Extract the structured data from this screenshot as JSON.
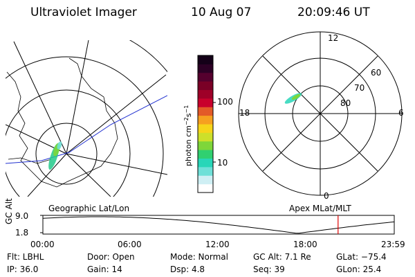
{
  "header": {
    "instrument": "Ultraviolet Imager",
    "date": "10 Aug 07",
    "time": "20:09:46 UT"
  },
  "colorbar": {
    "unit_label": "photon cm^-2 s^-1",
    "ticks": [
      "100",
      "10"
    ],
    "colors": [
      "#ffffff",
      "#cfeff4",
      "#6fe0d8",
      "#28d6b8",
      "#30d070",
      "#7ed63a",
      "#cde02a",
      "#f6d51a",
      "#f6a020",
      "#e35a28",
      "#c8002c",
      "#9e0028",
      "#7a0026",
      "#55002e",
      "#2c0025",
      "#140018"
    ]
  },
  "geo_panel": {
    "label": "Geographic Lat/Lon"
  },
  "polar_panel": {
    "label": "Apex MLat/MLT",
    "mlt_labels": {
      "top": "12",
      "left": "18",
      "right": "6",
      "bottom": "0"
    },
    "lat_labels": [
      "60",
      "70",
      "80"
    ]
  },
  "timeline": {
    "ylabel": "GC Alt",
    "y_ticks": [
      "9.0",
      "1.8"
    ],
    "x_ticks": [
      "00:00",
      "06:00",
      "12:00",
      "18:00",
      "23:59"
    ],
    "marker_time": "20:09:46",
    "marker_color": "#e00000"
  },
  "footer": {
    "filter": "Flt: LBHL",
    "ip": "IP: 36.0",
    "door": "Door: Open",
    "gain": "Gain: 14",
    "mode": "Mode: Normal",
    "dsp": "Dsp:     4.8",
    "gc_alt": "GC Alt: 7.1 Re",
    "seq": "Seq: 39",
    "glat": "GLat: −75.4",
    "glon": "GLon:  25.4"
  }
}
